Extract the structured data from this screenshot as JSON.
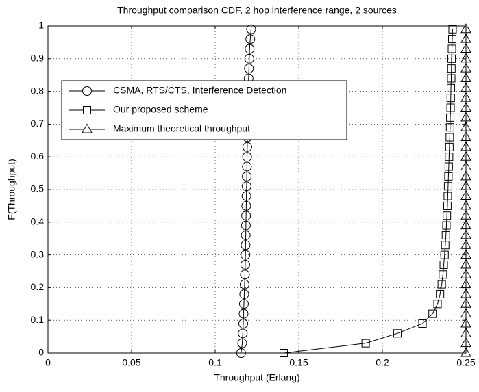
{
  "chart_data": {
    "type": "line",
    "title": "Throughput comparison CDF, 2 hop interference range, 2 sources",
    "x_label": "Throughput (Erlang)",
    "y_label": "F(Throughput)",
    "xlim": [
      0,
      0.25
    ],
    "ylim": [
      0,
      1
    ],
    "xticks": [
      0,
      0.05,
      0.1,
      0.15,
      0.2,
      0.25
    ],
    "yticks": [
      0,
      0.1,
      0.2,
      0.3,
      0.4,
      0.5,
      0.6,
      0.7,
      0.8,
      0.9,
      1
    ],
    "grid": true,
    "legend": "upper left",
    "series": [
      {
        "name": "CSMA, RTS/CTS, Interference Detection",
        "color": "#000000",
        "marker": "circle",
        "x": [
          0.1155,
          0.1162,
          0.1165,
          0.1168,
          0.117,
          0.1172,
          0.1174,
          0.1176,
          0.1178,
          0.118,
          0.1181,
          0.1182,
          0.1183,
          0.1184,
          0.1185,
          0.1186,
          0.1187,
          0.1188,
          0.1189,
          0.119,
          0.1191,
          0.1192,
          0.1193,
          0.1194,
          0.1195,
          0.1196,
          0.1197,
          0.1198,
          0.12,
          0.1202,
          0.1204,
          0.1206,
          0.121,
          0.1215
        ],
        "values": [
          0,
          0.03,
          0.06,
          0.09,
          0.12,
          0.15,
          0.18,
          0.21,
          0.24,
          0.27,
          0.3,
          0.33,
          0.36,
          0.39,
          0.42,
          0.45,
          0.48,
          0.51,
          0.54,
          0.57,
          0.6,
          0.63,
          0.66,
          0.69,
          0.72,
          0.75,
          0.78,
          0.81,
          0.84,
          0.87,
          0.9,
          0.93,
          0.96,
          0.99
        ]
      },
      {
        "name": "Our proposed scheme",
        "color": "#000000",
        "marker": "square",
        "x": [
          0.141,
          0.19,
          0.209,
          0.224,
          0.23,
          0.233,
          0.2345,
          0.2355,
          0.2362,
          0.2367,
          0.2372,
          0.2376,
          0.238,
          0.2383,
          0.2386,
          0.2389,
          0.2391,
          0.2393,
          0.2395,
          0.2397,
          0.2399,
          0.2401,
          0.2403,
          0.2405,
          0.2406,
          0.2408,
          0.2409,
          0.241,
          0.2412,
          0.2413,
          0.2414,
          0.2416,
          0.2418,
          0.242
        ],
        "values": [
          0,
          0.03,
          0.06,
          0.09,
          0.12,
          0.15,
          0.18,
          0.21,
          0.24,
          0.27,
          0.3,
          0.33,
          0.36,
          0.39,
          0.42,
          0.45,
          0.48,
          0.51,
          0.54,
          0.57,
          0.6,
          0.63,
          0.66,
          0.69,
          0.72,
          0.75,
          0.78,
          0.81,
          0.84,
          0.87,
          0.9,
          0.93,
          0.96,
          0.99
        ]
      },
      {
        "name": "Maximum theoretical throughput",
        "color": "#000000",
        "marker": "triangle",
        "x": [
          0.25,
          0.25,
          0.25,
          0.25,
          0.25,
          0.25,
          0.25,
          0.25,
          0.25,
          0.25,
          0.25,
          0.25,
          0.25,
          0.25,
          0.25,
          0.25,
          0.25,
          0.25,
          0.25,
          0.25,
          0.25,
          0.25,
          0.25,
          0.25,
          0.25,
          0.25,
          0.25,
          0.25,
          0.25,
          0.25,
          0.25,
          0.25,
          0.25,
          0.25
        ],
        "values": [
          0,
          0.03,
          0.06,
          0.09,
          0.12,
          0.15,
          0.18,
          0.21,
          0.24,
          0.27,
          0.3,
          0.33,
          0.36,
          0.39,
          0.42,
          0.45,
          0.48,
          0.51,
          0.54,
          0.57,
          0.6,
          0.63,
          0.66,
          0.69,
          0.72,
          0.75,
          0.78,
          0.81,
          0.84,
          0.87,
          0.9,
          0.93,
          0.96,
          0.99
        ]
      }
    ]
  }
}
